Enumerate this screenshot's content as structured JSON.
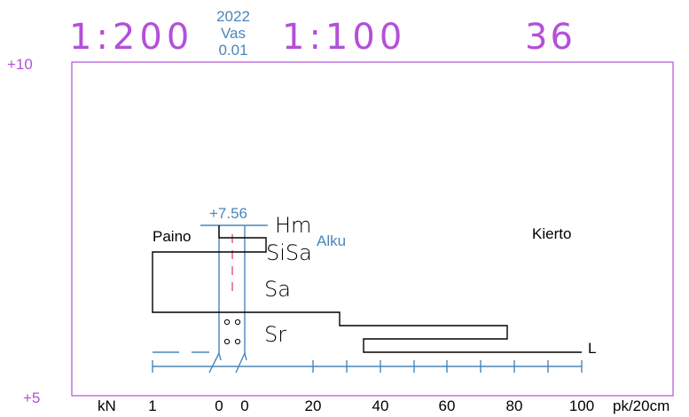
{
  "header": {
    "scale_h": "1:200",
    "scale_v": "1:100",
    "number": "36",
    "year": "2022",
    "side": "Vas",
    "value": "0.01"
  },
  "elevation": {
    "top": "+10",
    "bottom": "+5",
    "ground": "+7.56",
    "start_label": "Alku"
  },
  "labels": {
    "weight": "Paino",
    "rotation": "Kierto",
    "end": "L"
  },
  "soil_layers": [
    "Hm",
    "SiSa",
    "Sa",
    "Sr"
  ],
  "axis": {
    "unit_left": "kN",
    "unit_right": "pk/20cm",
    "ticks": [
      "1",
      "0",
      "0",
      "20",
      "40",
      "60",
      "80",
      "100"
    ]
  },
  "colors": {
    "scale": "#b44fd9",
    "probe": "#4a86b8",
    "profile": "#000000"
  }
}
